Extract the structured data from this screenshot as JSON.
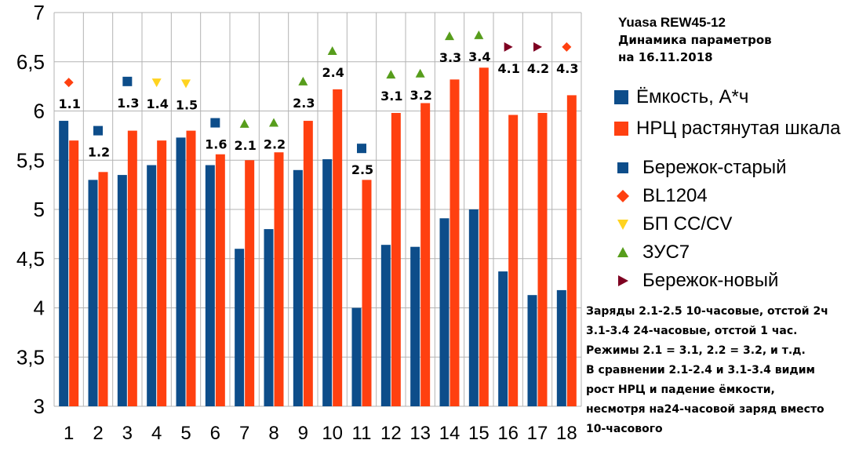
{
  "header": {
    "title": "Yuasa REW45-12",
    "subtitle": "Динамика параметров",
    "date_line": "на 16.11.2018"
  },
  "legend": {
    "series": [
      {
        "label": "Ёмкость, А*ч",
        "color": "#0d4d8a"
      },
      {
        "label": "НРЦ растянутая шкала",
        "color": "#ff4010"
      }
    ],
    "markers": [
      {
        "label": "Бережок-старый",
        "shape": "square",
        "color": "#0d4d8a"
      },
      {
        "label": "BL1204",
        "shape": "diamond",
        "color": "#ff4010"
      },
      {
        "label": "БП CC/CV",
        "shape": "triangle-down",
        "color": "#ffd320"
      },
      {
        "label": "ЗУС7",
        "shape": "triangle-up",
        "color": "#579d1c"
      },
      {
        "label": "Бережок-новый",
        "shape": "triangle-right",
        "color": "#7e0021"
      }
    ]
  },
  "notes": [
    "Заряды 2.1-2.5 10-часовые, отстой 2ч",
    "3.1-3.4 24-часовые, отстой 1 час.",
    "Режимы 2.1 = 3.1, 2.2 = 3.2, и т.д.",
    "В сравнении 2.1-2.4 и 3.1-3.4 видим",
    "рост НРЦ и падение ёмкости,",
    "несмотря на24-часовой заряд вместо",
    "10-часового"
  ],
  "chart_data": {
    "type": "bar",
    "categories": [
      "1",
      "2",
      "3",
      "4",
      "5",
      "6",
      "7",
      "8",
      "9",
      "10",
      "11",
      "12",
      "13",
      "14",
      "15",
      "16",
      "17",
      "18"
    ],
    "series": [
      {
        "name": "Ёмкость, А*ч",
        "color": "#0d4d8a",
        "values": [
          5.9,
          5.3,
          5.35,
          5.45,
          5.73,
          5.45,
          4.6,
          4.8,
          5.4,
          5.51,
          4.0,
          4.64,
          4.62,
          4.91,
          5.0,
          4.37,
          4.13,
          4.18
        ]
      },
      {
        "name": "НРЦ растянутая шкала",
        "color": "#ff4010",
        "values": [
          5.7,
          5.38,
          5.8,
          5.7,
          5.8,
          5.56,
          5.5,
          5.58,
          5.9,
          6.22,
          5.3,
          5.98,
          6.08,
          6.32,
          6.44,
          5.96,
          5.98,
          6.16
        ]
      }
    ],
    "markers": [
      {
        "x": 1,
        "y": 6.29,
        "shape": "diamond",
        "label": "1.1"
      },
      {
        "x": 2,
        "y": 5.8,
        "shape": "square",
        "label": "1.2"
      },
      {
        "x": 3,
        "y": 6.3,
        "shape": "square",
        "label": "1.3"
      },
      {
        "x": 4,
        "y": 6.29,
        "shape": "triangle-down",
        "label": "1.4"
      },
      {
        "x": 5,
        "y": 6.28,
        "shape": "triangle-down",
        "label": "1.5"
      },
      {
        "x": 6,
        "y": 5.88,
        "shape": "square",
        "label": "1.6"
      },
      {
        "x": 7,
        "y": 5.87,
        "shape": "triangle-up",
        "label": "2.1"
      },
      {
        "x": 8,
        "y": 5.88,
        "shape": "triangle-up",
        "label": "2.2"
      },
      {
        "x": 9,
        "y": 6.3,
        "shape": "triangle-up",
        "label": "2.3"
      },
      {
        "x": 10,
        "y": 6.61,
        "shape": "triangle-up",
        "label": "2.4"
      },
      {
        "x": 11,
        "y": 5.62,
        "shape": "square",
        "label": "2.5"
      },
      {
        "x": 12,
        "y": 6.37,
        "shape": "triangle-up",
        "label": "3.1"
      },
      {
        "x": 13,
        "y": 6.38,
        "shape": "triangle-up",
        "label": "3.2"
      },
      {
        "x": 14,
        "y": 6.76,
        "shape": "triangle-up",
        "label": "3.3"
      },
      {
        "x": 15,
        "y": 6.77,
        "shape": "triangle-up",
        "label": "3.4"
      },
      {
        "x": 16,
        "y": 6.65,
        "shape": "triangle-right",
        "label": "4.1"
      },
      {
        "x": 17,
        "y": 6.65,
        "shape": "triangle-right",
        "label": "4.2"
      },
      {
        "x": 18,
        "y": 6.65,
        "shape": "diamond",
        "label": "4.3"
      }
    ],
    "marker_colors": {
      "square": "#0d4d8a",
      "diamond": "#ff4010",
      "triangle-down": "#ffd320",
      "triangle-up": "#579d1c",
      "triangle-right": "#7e0021"
    },
    "yticks": [
      "3",
      "3,5",
      "4",
      "4,5",
      "5",
      "5,5",
      "6",
      "6,5",
      "7"
    ],
    "ylim": [
      3,
      7
    ],
    "grid": true,
    "legend_position": "right"
  }
}
